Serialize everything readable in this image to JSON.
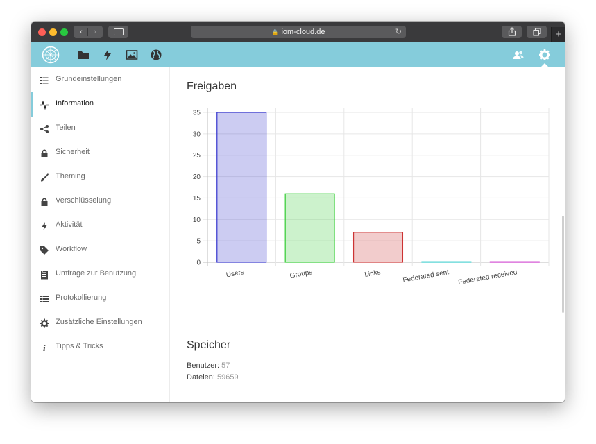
{
  "browser": {
    "url": "iom-cloud.de",
    "back_icon": "chevron-left-icon",
    "forward_icon": "chevron-right-icon"
  },
  "colors": {
    "header": "#85ccdb",
    "users": "#3333cc",
    "groups": "#33cc33",
    "links": "#cc3333",
    "federated_sent": "#33cccc",
    "federated_received": "#cc33cc"
  },
  "sidebar": {
    "items": [
      {
        "label": "Grundeinstellungen",
        "icon": "list-icon"
      },
      {
        "label": "Information",
        "icon": "activity-icon"
      },
      {
        "label": "Teilen",
        "icon": "share-icon"
      },
      {
        "label": "Sicherheit",
        "icon": "lock-icon"
      },
      {
        "label": "Theming",
        "icon": "brush-icon"
      },
      {
        "label": "Verschlüsselung",
        "icon": "lock-icon"
      },
      {
        "label": "Aktivität",
        "icon": "lightning-icon"
      },
      {
        "label": "Workflow",
        "icon": "tag-icon"
      },
      {
        "label": "Umfrage zur Benutzung",
        "icon": "clipboard-icon"
      },
      {
        "label": "Protokollierung",
        "icon": "list-icon"
      },
      {
        "label": "Zusätzliche Einstellungen",
        "icon": "gear-icon"
      },
      {
        "label": "Tipps & Tricks",
        "icon": "info-icon"
      }
    ]
  },
  "main": {
    "shares_title": "Freigaben",
    "storage_title": "Speicher",
    "users_label": "Benutzer:",
    "users_value": "57",
    "files_label": "Dateien:",
    "files_value": "59659"
  },
  "chart_data": {
    "type": "bar",
    "categories": [
      "Users",
      "Groups",
      "Links",
      "Federated sent",
      "Federated received"
    ],
    "values": [
      35,
      16,
      7,
      0,
      0
    ],
    "ylim": [
      0,
      35
    ],
    "yticks": [
      0,
      5,
      10,
      15,
      20,
      25,
      30,
      35
    ],
    "grid": true,
    "title": "",
    "xlabel": "",
    "ylabel": ""
  }
}
